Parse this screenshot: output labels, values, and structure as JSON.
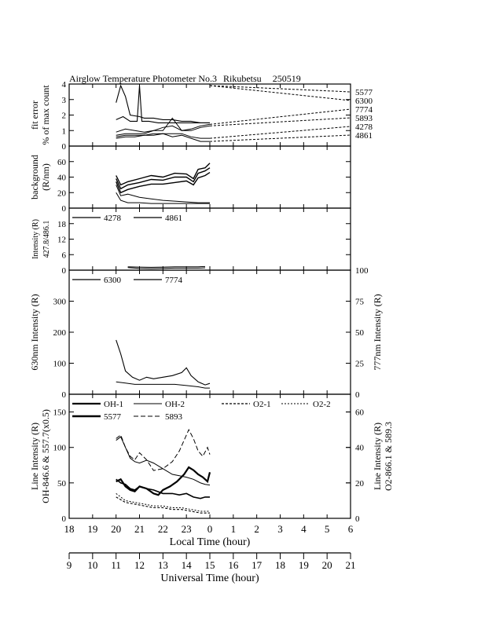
{
  "title": {
    "instrument": "Airglow Temperature Photometer No.3",
    "station": "Rikubetsu",
    "date": "250519"
  },
  "chart_data": {
    "type": "line",
    "x_axis_local": {
      "label": "Local Time (hour)",
      "range": [
        18,
        30
      ],
      "ticks": [
        "18",
        "19",
        "20",
        "21",
        "22",
        "23",
        "0",
        "1",
        "2",
        "3",
        "4",
        "5",
        "6"
      ]
    },
    "x_axis_ut": {
      "label": "Universal Time (hour)",
      "range": [
        9,
        21
      ],
      "ticks": [
        "9",
        "10",
        "11",
        "12",
        "13",
        "14",
        "15",
        "16",
        "17",
        "18",
        "19",
        "20",
        "21"
      ]
    },
    "panels": [
      {
        "id": "fit_error",
        "ylabel_lines": [
          "fit error",
          "% of max count"
        ],
        "ylim": [
          0,
          4
        ],
        "yticks": [
          "0",
          "1",
          "2",
          "3",
          "4"
        ],
        "right_labels": [
          "5577",
          "6300",
          "7774",
          "5893",
          "4278",
          "4861"
        ],
        "series": [
          {
            "name": "5577",
            "x": [
              20.0,
              20.2,
              20.4,
              20.6,
              21.0,
              21.2,
              21.6,
              22.0,
              22.4,
              22.8,
              23.2,
              23.6,
              24.0
            ],
            "y": [
              2.8,
              3.9,
              3.2,
              2.0,
              1.9,
              1.8,
              1.8,
              1.7,
              1.7,
              1.6,
              1.6,
              1.5,
              1.5
            ]
          },
          {
            "name": "6300",
            "x": [
              20.0,
              20.3,
              20.6,
              20.9,
              21.0,
              21.1,
              21.4,
              21.8,
              22.2,
              22.6,
              23.0,
              23.4,
              23.8,
              24.0
            ],
            "y": [
              1.7,
              1.9,
              1.6,
              1.6,
              3.9,
              1.6,
              1.6,
              1.5,
              1.5,
              1.5,
              1.5,
              1.5,
              1.5,
              1.5
            ]
          },
          {
            "name": "7774",
            "x": [
              20.0,
              20.4,
              20.8,
              21.2,
              21.6,
              22.0,
              22.4,
              22.8,
              23.2,
              23.6,
              24.0
            ],
            "y": [
              0.9,
              1.1,
              1.0,
              0.9,
              1.0,
              1.0,
              1.8,
              1.0,
              1.1,
              1.3,
              1.4
            ]
          },
          {
            "name": "5893",
            "x": [
              20.0,
              20.4,
              20.8,
              21.2,
              21.6,
              22.0,
              22.4,
              22.8,
              23.2,
              23.6,
              24.0
            ],
            "y": [
              0.7,
              0.8,
              0.8,
              0.8,
              1.0,
              1.2,
              1.3,
              1.0,
              1.0,
              1.2,
              1.3
            ]
          },
          {
            "name": "4278",
            "x": [
              20.0,
              20.4,
              20.8,
              21.2,
              21.6,
              22.0,
              22.4,
              22.8,
              23.2,
              23.6,
              24.0
            ],
            "y": [
              0.6,
              0.7,
              0.7,
              0.7,
              0.8,
              0.8,
              0.8,
              0.8,
              0.6,
              0.5,
              0.5
            ]
          },
          {
            "name": "4861",
            "x": [
              20.0,
              20.4,
              20.8,
              21.2,
              21.6,
              22.0,
              22.4,
              22.8,
              23.2,
              23.6,
              24.0
            ],
            "y": [
              0.5,
              0.6,
              0.6,
              0.7,
              0.7,
              0.8,
              0.6,
              0.7,
              0.5,
              0.3,
              0.3
            ]
          }
        ]
      },
      {
        "id": "background",
        "ylabel_lines": [
          "background",
          "(R/nm)"
        ],
        "ylim": [
          0,
          80
        ],
        "yticks": [
          "0",
          "20",
          "40",
          "60"
        ],
        "series": [
          {
            "x": [
              20.0,
              20.2,
              20.5,
              21.0,
              21.5,
              22.0,
              22.5,
              23.0,
              23.3,
              23.5,
              23.8,
              24.0
            ],
            "y": [
              42,
              30,
              34,
              38,
              42,
              40,
              45,
              44,
              38,
              50,
              52,
              58
            ]
          },
          {
            "x": [
              20.0,
              20.2,
              20.5,
              21.0,
              21.5,
              22.0,
              22.5,
              23.0,
              23.3,
              23.5,
              23.8,
              24.0
            ],
            "y": [
              38,
              25,
              30,
              33,
              37,
              36,
              40,
              40,
              34,
              45,
              48,
              52
            ]
          },
          {
            "x": [
              20.0,
              20.2,
              20.5,
              21.0,
              21.5,
              22.0,
              22.5,
              23.0,
              23.3,
              23.5,
              23.8,
              24.0
            ],
            "y": [
              34,
              20,
              24,
              28,
              31,
              31,
              33,
              35,
              30,
              39,
              42,
              46
            ]
          },
          {
            "x": [
              20.0,
              20.2,
              20.5,
              21.0,
              21.5,
              22.0,
              22.5,
              23.0,
              23.5,
              24.0
            ],
            "y": [
              30,
              16,
              18,
              14,
              12,
              10,
              9,
              8,
              7,
              7
            ]
          },
          {
            "x": [
              20.0,
              20.2,
              20.5,
              21.0,
              21.5,
              22.0,
              22.5,
              23.0,
              23.5,
              24.0
            ],
            "y": [
              20,
              10,
              7,
              7,
              6,
              6,
              6,
              6,
              6,
              6
            ]
          }
        ]
      },
      {
        "id": "blue_lines",
        "ylabel_lines": [
          "Intensity (R)",
          "427.8/486.1"
        ],
        "ylim": [
          0,
          24
        ],
        "yticks": [
          "0",
          "6",
          "12",
          "18"
        ],
        "legend": [
          "4278",
          "4861"
        ],
        "series": [
          {
            "name": "4278",
            "x": [
              20.5,
              21.0,
              21.5,
              22.0,
              22.5,
              23.0,
              23.5,
              23.8
            ],
            "y": [
              1.0,
              0.7,
              0.6,
              0.7,
              0.8,
              0.8,
              0.8,
              0.9
            ]
          },
          {
            "name": "4861",
            "x": [
              20.5,
              21.0,
              21.5,
              22.0,
              22.5,
              23.0,
              23.5,
              23.8
            ],
            "y": [
              1.3,
              1.2,
              1.1,
              1.2,
              1.3,
              1.3,
              1.3,
              1.4
            ]
          }
        ]
      },
      {
        "id": "red_lines",
        "ylabel_left": "630nm Intensity (R)",
        "ylabel_right": "777nm Intensity (R)",
        "ylim": [
          0,
          400
        ],
        "ylim_right": [
          0,
          100
        ],
        "yticks": [
          "0",
          "100",
          "200",
          "300"
        ],
        "yticks_right": [
          "0",
          "25",
          "50",
          "75",
          "100"
        ],
        "legend": [
          "6300",
          "7774"
        ],
        "series": [
          {
            "name": "6300",
            "x": [
              20.0,
              20.2,
              20.4,
              20.7,
              21.0,
              21.3,
              21.6,
              22.0,
              22.4,
              22.8,
              23.0,
              23.2,
              23.5,
              23.8,
              24.0
            ],
            "y": [
              175,
              130,
              75,
              55,
              45,
              55,
              50,
              55,
              60,
              70,
              85,
              60,
              40,
              30,
              35
            ]
          },
          {
            "name": "7774",
            "x": [
              20.0,
              20.4,
              20.8,
              21.2,
              21.6,
              22.0,
              22.5,
              23.0,
              23.5,
              23.8,
              24.0
            ],
            "y": [
              10,
              9,
              8,
              8,
              8,
              8,
              8,
              7,
              6,
              5,
              5
            ],
            "axis": "right"
          }
        ]
      },
      {
        "id": "line_intensity",
        "ylabel_left_lines": [
          "Line Intensity (R)",
          "OH-846.6 & 557.7(x0.5)"
        ],
        "ylabel_right_lines": [
          "Line Intensity (R)",
          "O2-866.1 & 589.3"
        ],
        "ylim": [
          0,
          175
        ],
        "ylim_right": [
          0,
          70
        ],
        "yticks": [
          "0",
          "50",
          "100",
          "150"
        ],
        "yticks_right": [
          "0",
          "20",
          "40",
          "60"
        ],
        "legend": [
          "OH-1",
          "OH-2",
          "O2-1",
          "O2-2",
          "5577",
          "5893"
        ],
        "series": [
          {
            "name": "OH-1",
            "x": [
              20.0,
              20.2,
              20.4,
              20.6,
              20.8,
              21.0,
              21.3,
              21.6,
              22.0,
              22.4,
              22.7,
              23.0,
              23.3,
              23.6,
              23.8,
              24.0
            ],
            "y": [
              55,
              50,
              48,
              42,
              40,
              45,
              42,
              40,
              35,
              35,
              33,
              35,
              30,
              28,
              30,
              30
            ]
          },
          {
            "name": "OH-2",
            "x": [
              20.0,
              20.2,
              20.4,
              20.6,
              20.8,
              21.0,
              21.3,
              21.6,
              22.0,
              22.4,
              22.7,
              23.0,
              23.3,
              23.6,
              23.8,
              24.0
            ],
            "y": [
              110,
              115,
              100,
              85,
              80,
              78,
              82,
              78,
              70,
              62,
              60,
              58,
              55,
              50,
              48,
              47
            ]
          },
          {
            "name": "O2-1",
            "x": [
              20.0,
              20.4,
              20.8,
              21.2,
              21.6,
              22.0,
              22.4,
              22.8,
              23.2,
              23.6,
              24.0
            ],
            "y": [
              12,
              9,
              8,
              7,
              6,
              6,
              5,
              5,
              4,
              3,
              3
            ],
            "axis": "right"
          },
          {
            "name": "O2-2",
            "x": [
              20.0,
              20.4,
              20.8,
              21.2,
              21.6,
              22.0,
              22.4,
              22.8,
              23.2,
              23.6,
              24.0
            ],
            "y": [
              14,
              10,
              9,
              8,
              7,
              7,
              6,
              6,
              5,
              4,
              4
            ],
            "axis": "right"
          },
          {
            "name": "5577",
            "x": [
              20.0,
              20.2,
              20.4,
              20.6,
              20.8,
              21.0,
              21.3,
              21.6,
              21.8,
              22.0,
              22.3,
              22.6,
              22.9,
              23.1,
              23.3,
              23.5,
              23.7,
              23.9,
              24.0
            ],
            "y": [
              52,
              55,
              45,
              40,
              38,
              45,
              42,
              35,
              33,
              40,
              45,
              52,
              62,
              72,
              68,
              62,
              58,
              52,
              65
            ]
          },
          {
            "name": "5893",
            "x": [
              20.0,
              20.2,
              20.4,
              20.6,
              20.8,
              21.0,
              21.3,
              21.6,
              22.0,
              22.4,
              22.7,
              23.0,
              23.1,
              23.3,
              23.5,
              23.7,
              23.9,
              24.0
            ],
            "y": [
              45,
              47,
              40,
              35,
              33,
              37,
              33,
              27,
              28,
              32,
              38,
              47,
              50,
              45,
              38,
              35,
              40,
              36
            ],
            "axis": "right"
          }
        ]
      }
    ]
  }
}
